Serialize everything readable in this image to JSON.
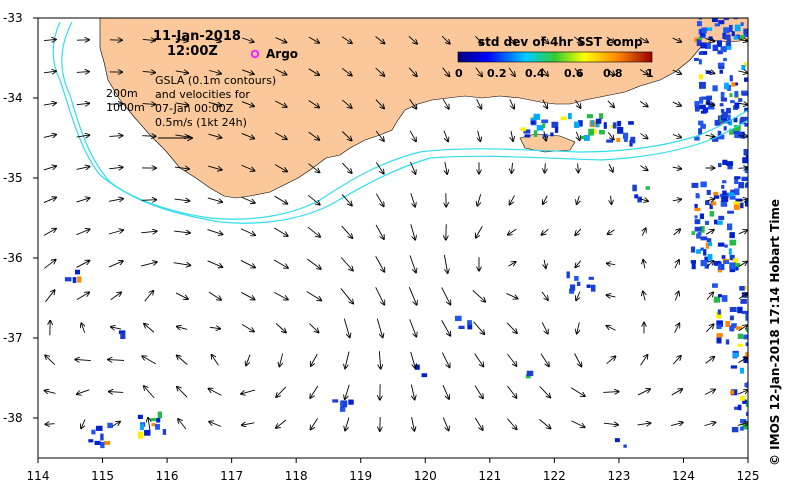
{
  "title": {
    "date": "11-Jan-2018",
    "time": "12:00Z"
  },
  "argo_label": "Argo",
  "depth_labels": [
    "200m",
    "1000m"
  ],
  "info_lines": [
    "GSLA (0.1m contours)",
    "and velocities for",
    "07-Jan 00:00Z",
    "0.5m/s (1kt 24h)"
  ],
  "colorbar": {
    "title": "std dev of 4hr SST comp",
    "ticks": [
      "0",
      "0.2",
      "0.4",
      "0.6",
      "0.8",
      "1"
    ],
    "range": [
      0,
      1
    ]
  },
  "axes": {
    "x_ticks": [
      "114",
      "115",
      "116",
      "117",
      "118",
      "119",
      "120",
      "121",
      "122",
      "123",
      "124",
      "125"
    ],
    "y_ticks": [
      "-33",
      "-34",
      "-35",
      "-36",
      "-37",
      "-38"
    ],
    "lon_range": [
      114,
      125
    ],
    "lat_range": [
      -38.5,
      -33
    ]
  },
  "credit": "© IMOS 12-Jan-2018 17:14 Hobart Time",
  "colors": {
    "land": "#fac89a",
    "contour": "#33ddee",
    "argo": "#ff22ff"
  }
}
